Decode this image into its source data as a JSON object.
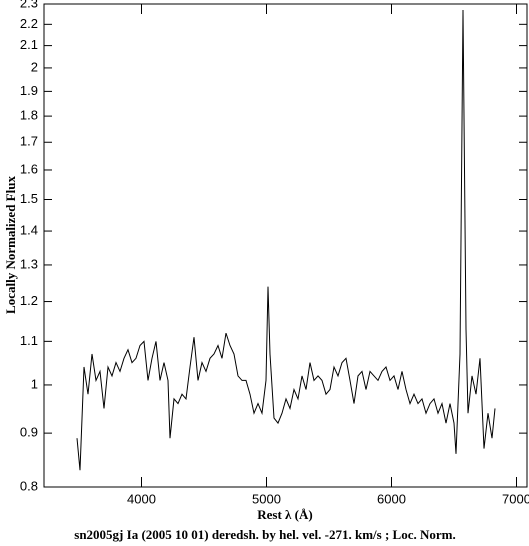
{
  "chart_data": {
    "type": "line",
    "title": "sn2005gj Ia (2005 10 01) deredsh. by hel. vel.  -271. km/s ;  Loc. Norm.",
    "xlabel": "Rest λ (Å)",
    "ylabel": "Locally Normalized Flux",
    "color": "#000000",
    "log_y": true,
    "xlim": [
      3220,
      7084
    ],
    "xticks": [
      4000,
      5000,
      6000,
      7000
    ],
    "ylim": [
      0.8,
      2.3
    ],
    "yticks": [
      0.8,
      0.9,
      1,
      1.1,
      1.2,
      1.3,
      1.4,
      1.5,
      1.6,
      1.7,
      1.8,
      1.9,
      2,
      2.1,
      2.2,
      2.3
    ],
    "x": [
      3484,
      3508,
      3540,
      3572,
      3604,
      3636,
      3668,
      3700,
      3732,
      3764,
      3796,
      3828,
      3860,
      3892,
      3924,
      3956,
      3988,
      4020,
      4052,
      4084,
      4116,
      4148,
      4180,
      4212,
      4228,
      4260,
      4292,
      4324,
      4356,
      4388,
      4420,
      4452,
      4484,
      4516,
      4548,
      4580,
      4612,
      4644,
      4676,
      4708,
      4740,
      4772,
      4804,
      4836,
      4868,
      4900,
      4932,
      4964,
      4996,
      5012,
      5028,
      5060,
      5092,
      5124,
      5156,
      5188,
      5220,
      5252,
      5284,
      5316,
      5348,
      5380,
      5412,
      5444,
      5476,
      5508,
      5540,
      5572,
      5604,
      5636,
      5668,
      5700,
      5732,
      5764,
      5796,
      5828,
      5860,
      5892,
      5924,
      5956,
      5988,
      6020,
      6052,
      6084,
      6116,
      6148,
      6180,
      6212,
      6244,
      6276,
      6308,
      6340,
      6372,
      6404,
      6436,
      6468,
      6500,
      6516,
      6548,
      6572,
      6596,
      6612,
      6644,
      6676,
      6708,
      6740,
      6772,
      6804,
      6828
    ],
    "values": [
      0.89,
      0.83,
      1.04,
      0.98,
      1.07,
      1.01,
      1.03,
      0.95,
      1.04,
      1.02,
      1.05,
      1.03,
      1.06,
      1.08,
      1.05,
      1.06,
      1.09,
      1.1,
      1.01,
      1.06,
      1.1,
      1.01,
      1.05,
      1.01,
      0.89,
      0.97,
      0.96,
      0.98,
      0.97,
      1.04,
      1.11,
      1.01,
      1.05,
      1.03,
      1.06,
      1.07,
      1.09,
      1.06,
      1.12,
      1.09,
      1.07,
      1.02,
      1.01,
      1.01,
      0.98,
      0.94,
      0.96,
      0.94,
      1.01,
      1.24,
      1.07,
      0.93,
      0.92,
      0.94,
      0.97,
      0.95,
      0.99,
      0.97,
      1.02,
      0.99,
      1.05,
      1.01,
      1.02,
      1.01,
      0.98,
      0.99,
      1.04,
      1.02,
      1.05,
      1.06,
      1.01,
      0.96,
      1.02,
      1.03,
      0.99,
      1.03,
      1.02,
      1.01,
      1.03,
      1.04,
      1.01,
      1.02,
      0.99,
      1.03,
      0.99,
      0.96,
      0.98,
      0.96,
      0.97,
      0.94,
      0.96,
      0.97,
      0.94,
      0.96,
      0.92,
      0.96,
      0.92,
      0.86,
      1.07,
      2.27,
      1.13,
      0.94,
      1.02,
      0.98,
      1.06,
      0.87,
      0.94,
      0.89,
      0.95
    ]
  }
}
